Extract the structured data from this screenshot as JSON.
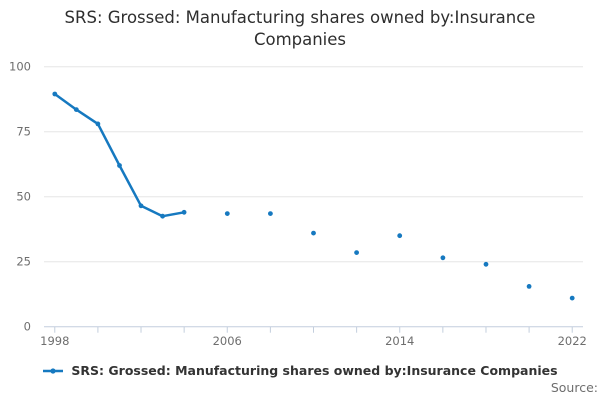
{
  "header": {
    "title": "SRS: Grossed: Manufacturing shares owned by:Insurance Companies"
  },
  "legend": {
    "label": "SRS: Grossed: Manufacturing shares owned by:Insurance Companies"
  },
  "footer": {
    "source_label": "Source:"
  },
  "colors": {
    "series": "#1679c0",
    "gridline": "#e6e6e6",
    "axis_line": "#c3cedd",
    "tick_label": "#6e6e6e",
    "title_text": "#2e2e2e",
    "legend_text": "#333333",
    "source_text": "#6e6e6e",
    "background": "#ffffff"
  },
  "chart_data": {
    "type": "line",
    "title": "SRS: Grossed: Manufacturing shares owned by:Insurance Companies",
    "series_name": "SRS: Grossed: Manufacturing shares owned by:Insurance Companies",
    "x": [
      1998,
      1999,
      2000,
      2001,
      2002,
      2003,
      2004,
      2006,
      2008,
      2010,
      2012,
      2014,
      2016,
      2018,
      2020,
      2022
    ],
    "values": [
      89.5,
      83.5,
      78,
      62,
      46.5,
      42.5,
      44,
      43.5,
      43.5,
      36,
      28.5,
      35,
      26.5,
      24,
      15.5,
      11
    ],
    "xlabel": "",
    "ylabel": "",
    "xlim": [
      1997.5,
      2022.5
    ],
    "ylim": [
      0,
      100
    ],
    "x_ticks": [
      1998,
      2000,
      2002,
      2004,
      2006,
      2008,
      2010,
      2012,
      2014,
      2016,
      2018,
      2020,
      2022
    ],
    "x_tick_labels": [
      "1998",
      "2006",
      "2014",
      "2022"
    ],
    "y_ticks": [
      0,
      25,
      50,
      75,
      100
    ],
    "grid": "horizontal",
    "markers": true,
    "line_gaps": "break-on-missing-years",
    "legend_position": "bottom",
    "source_note": "Source:"
  }
}
